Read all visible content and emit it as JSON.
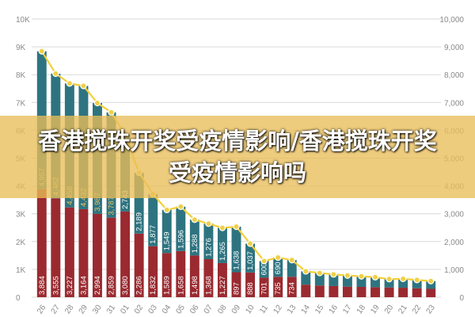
{
  "headline": "香港搅珠开奖受疫情影响/香港搅珠开奖受疫情影响吗",
  "colors": {
    "bottom_segment": "#9a2a30",
    "top_segment": "#2e7480",
    "line": "#f3cf3a",
    "marker": "#f0d04a",
    "grid": "#d9d9d9",
    "axis_text": "#8a8a8a",
    "banner": "#e9be58"
  },
  "chart_data": {
    "type": "bar",
    "stacked": true,
    "x_tick_labels": [
      "26",
      "27",
      "28",
      "29",
      "30",
      "31",
      "01",
      "02",
      "03",
      "04",
      "05",
      "06",
      "07",
      "08",
      "09",
      "10",
      "11",
      "12",
      "13",
      "14",
      "15",
      "16",
      "17",
      "18",
      "19",
      "20",
      "21",
      "22",
      "23"
    ],
    "bottom_values": [
      3884,
      3555,
      3227,
      3164,
      2994,
      2859,
      3080,
      2286,
      1832,
      1589,
      1658,
      1498,
      1368,
      1227,
      897,
      888,
      701,
      735,
      734,
      null,
      null,
      null,
      null,
      null,
      null,
      null,
      null,
      null,
      null
    ],
    "top_values": [
      4957,
      4482,
      4458,
      4432,
      3987,
      3787,
      2743,
      2189,
      1877,
      1549,
      1596,
      1288,
      1276,
      1265,
      1638,
      1037,
      600,
      690,
      null,
      null,
      null,
      null,
      null,
      null,
      null,
      null,
      null,
      null,
      null
    ],
    "bottom_estimated": [
      3884,
      3555,
      3227,
      3164,
      2994,
      2859,
      3080,
      2286,
      1832,
      1589,
      1658,
      1498,
      1368,
      1227,
      897,
      888,
      701,
      735,
      734,
      450,
      420,
      400,
      380,
      370,
      360,
      350,
      340,
      320,
      300
    ],
    "top_estimated": [
      4957,
      4482,
      4458,
      4432,
      3987,
      3787,
      2743,
      2189,
      1877,
      1549,
      1596,
      1288,
      1276,
      1265,
      1638,
      1037,
      600,
      690,
      600,
      480,
      450,
      420,
      400,
      380,
      360,
      300,
      320,
      300,
      280
    ],
    "line_values": [
      8841,
      8037,
      7685,
      7596,
      6981,
      6646,
      5823,
      4475,
      3709,
      3138,
      3254,
      2786,
      2644,
      2492,
      2535,
      1925,
      1301,
      1425,
      1334,
      930,
      870,
      820,
      780,
      750,
      720,
      650,
      660,
      620,
      580
    ],
    "left_axis": {
      "ylim": [
        0,
        10000
      ],
      "tick_labels": [
        "0",
        "1K",
        "2K",
        "3K",
        "4K",
        "5K",
        "6K",
        "7K",
        "8K",
        "9K",
        "10K"
      ]
    },
    "right_axis": {
      "ylim": [
        0,
        10000
      ],
      "tick_labels": [
        "0",
        "1,000",
        "2,000",
        "3,000",
        "4,000",
        "5,000",
        "6,000",
        "7,000",
        "8,000",
        "9,000",
        "10,000"
      ]
    },
    "grid": true
  }
}
